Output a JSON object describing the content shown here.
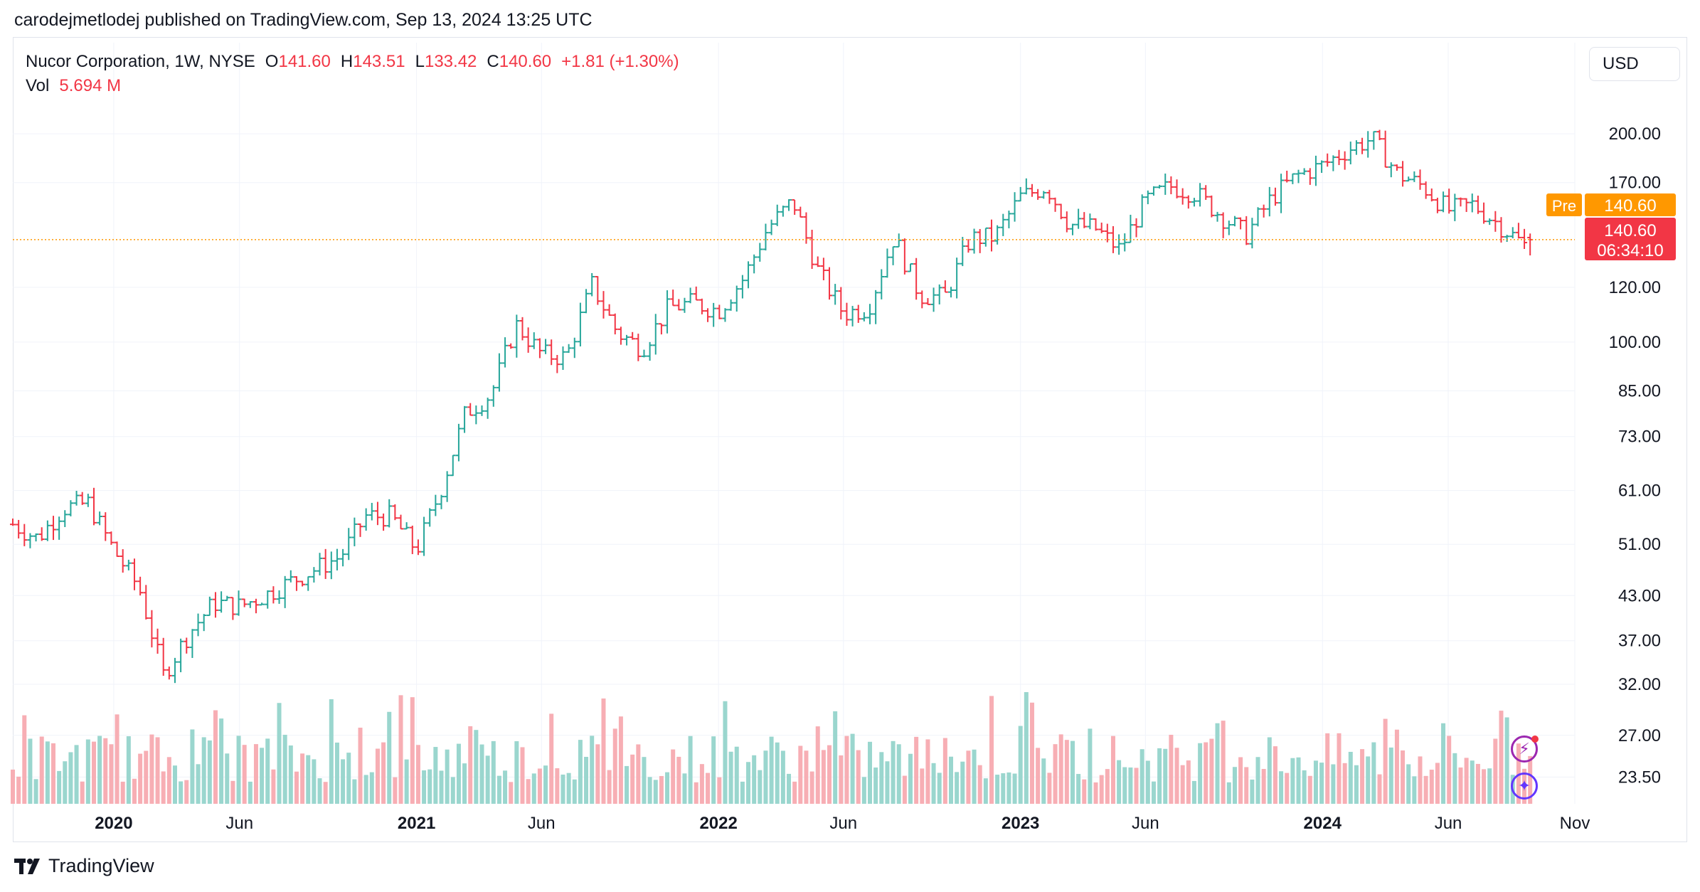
{
  "header": {
    "text": "carodejmetlodej published on TradingView.com, Sep 13, 2024 13:25 UTC"
  },
  "legend": {
    "symbol": "Nucor Corporation, 1W, NYSE",
    "o_label": "O",
    "o_value": "141.60",
    "h_label": "H",
    "h_value": "143.51",
    "l_label": "L",
    "l_value": "133.42",
    "c_label": "C",
    "c_value": "140.60",
    "change": "+1.81 (+1.30%)",
    "vol_label": "Vol",
    "vol_value": "5.694 M"
  },
  "currency_button": "USD",
  "footer": {
    "brand": "TradingView"
  },
  "colors": {
    "up": "#26a69a",
    "down": "#f23645",
    "vol_up": "#9ad6ce",
    "vol_down": "#f7aeb4",
    "pre": "#ff9800",
    "grid": "#f0f3fa"
  },
  "icons": [
    "tradingview-logo-icon",
    "bolt-icon",
    "sparkle-icon"
  ],
  "chart_data": {
    "type": "ohlc",
    "scale": "log",
    "ylim": [
      21.5,
      235
    ],
    "y_ticks": [
      200,
      170,
      120,
      100,
      85,
      73,
      61,
      51,
      43,
      37,
      32,
      27,
      23.5
    ],
    "y_tick_labels": [
      "200.00",
      "170.00",
      "120.00",
      "100.00",
      "85.00",
      "73.00",
      "61.00",
      "51.00",
      "43.00",
      "37.00",
      "32.00",
      "27.00",
      "23.50"
    ],
    "x_tick_labels": [
      {
        "label": "2020",
        "date": "2020-01-01",
        "bold": true
      },
      {
        "label": "Jun",
        "date": "2020-06-01",
        "bold": false
      },
      {
        "label": "2021",
        "date": "2021-01-01",
        "bold": true
      },
      {
        "label": "Jun",
        "date": "2021-06-01",
        "bold": false
      },
      {
        "label": "2022",
        "date": "2022-01-01",
        "bold": true
      },
      {
        "label": "Jun",
        "date": "2022-06-01",
        "bold": false
      },
      {
        "label": "2023",
        "date": "2023-01-01",
        "bold": true
      },
      {
        "label": "Jun",
        "date": "2023-06-01",
        "bold": false
      },
      {
        "label": "2024",
        "date": "2024-01-01",
        "bold": true
      },
      {
        "label": "Jun",
        "date": "2024-06-01",
        "bold": false
      },
      {
        "label": "Nov",
        "date": "2024-11-01",
        "bold": false
      }
    ],
    "x_range": [
      "2019-09-01",
      "2024-11-01"
    ],
    "price_path": [
      [
        "2019-09-01",
        54.5
      ],
      [
        "2019-10-01",
        52
      ],
      [
        "2019-11-01",
        57.5
      ],
      [
        "2019-12-01",
        58.5
      ],
      [
        "2020-01-01",
        50
      ],
      [
        "2020-02-01",
        44
      ],
      [
        "2020-03-01",
        33
      ],
      [
        "2020-04-01",
        38
      ],
      [
        "2020-05-01",
        42
      ],
      [
        "2020-06-01",
        41.5
      ],
      [
        "2020-07-01",
        43
      ],
      [
        "2020-08-01",
        45
      ],
      [
        "2020-09-01",
        47
      ],
      [
        "2020-10-01",
        49
      ],
      [
        "2020-11-01",
        56
      ],
      [
        "2020-12-01",
        56
      ],
      [
        "2021-01-01",
        50
      ],
      [
        "2021-02-01",
        62
      ],
      [
        "2021-03-01",
        79
      ],
      [
        "2021-04-01",
        84
      ],
      [
        "2021-05-01",
        106
      ],
      [
        "2021-06-01",
        96
      ],
      [
        "2021-07-01",
        95
      ],
      [
        "2021-08-01",
        121
      ],
      [
        "2021-09-01",
        103
      ],
      [
        "2021-10-01",
        98
      ],
      [
        "2021-11-01",
        112
      ],
      [
        "2021-12-01",
        114
      ],
      [
        "2022-01-01",
        111
      ],
      [
        "2022-02-01",
        124
      ],
      [
        "2022-03-01",
        146
      ],
      [
        "2022-04-01",
        160
      ],
      [
        "2022-05-01",
        127
      ],
      [
        "2022-06-01",
        110
      ],
      [
        "2022-07-01",
        112
      ],
      [
        "2022-08-01",
        142
      ],
      [
        "2022-09-01",
        117
      ],
      [
        "2022-10-01",
        116
      ],
      [
        "2022-11-01",
        141
      ],
      [
        "2022-12-01",
        142
      ],
      [
        "2023-01-01",
        162
      ],
      [
        "2023-02-01",
        168
      ],
      [
        "2023-03-01",
        148
      ],
      [
        "2023-04-01",
        146
      ],
      [
        "2023-05-01",
        136
      ],
      [
        "2023-06-01",
        160
      ],
      [
        "2023-07-01",
        168
      ],
      [
        "2023-08-01",
        164
      ],
      [
        "2023-09-01",
        152
      ],
      [
        "2023-10-01",
        143
      ],
      [
        "2023-11-01",
        162
      ],
      [
        "2023-12-01",
        174
      ],
      [
        "2024-01-01",
        180
      ],
      [
        "2024-02-01",
        190
      ],
      [
        "2024-03-01",
        197
      ],
      [
        "2024-04-01",
        175
      ],
      [
        "2024-05-01",
        168
      ],
      [
        "2024-06-01",
        155
      ],
      [
        "2024-07-01",
        158
      ],
      [
        "2024-08-01",
        148
      ],
      [
        "2024-09-01",
        138
      ],
      [
        "2024-09-13",
        140.6
      ]
    ],
    "last_bar": {
      "open": 141.6,
      "high": 143.51,
      "low": 133.42,
      "close": 140.6
    },
    "volume_label": "5.694 M",
    "pre_label": "Pre",
    "pre_price": "140.60",
    "last_price_label": "140.60",
    "countdown": "06:34:10",
    "grid": true
  }
}
